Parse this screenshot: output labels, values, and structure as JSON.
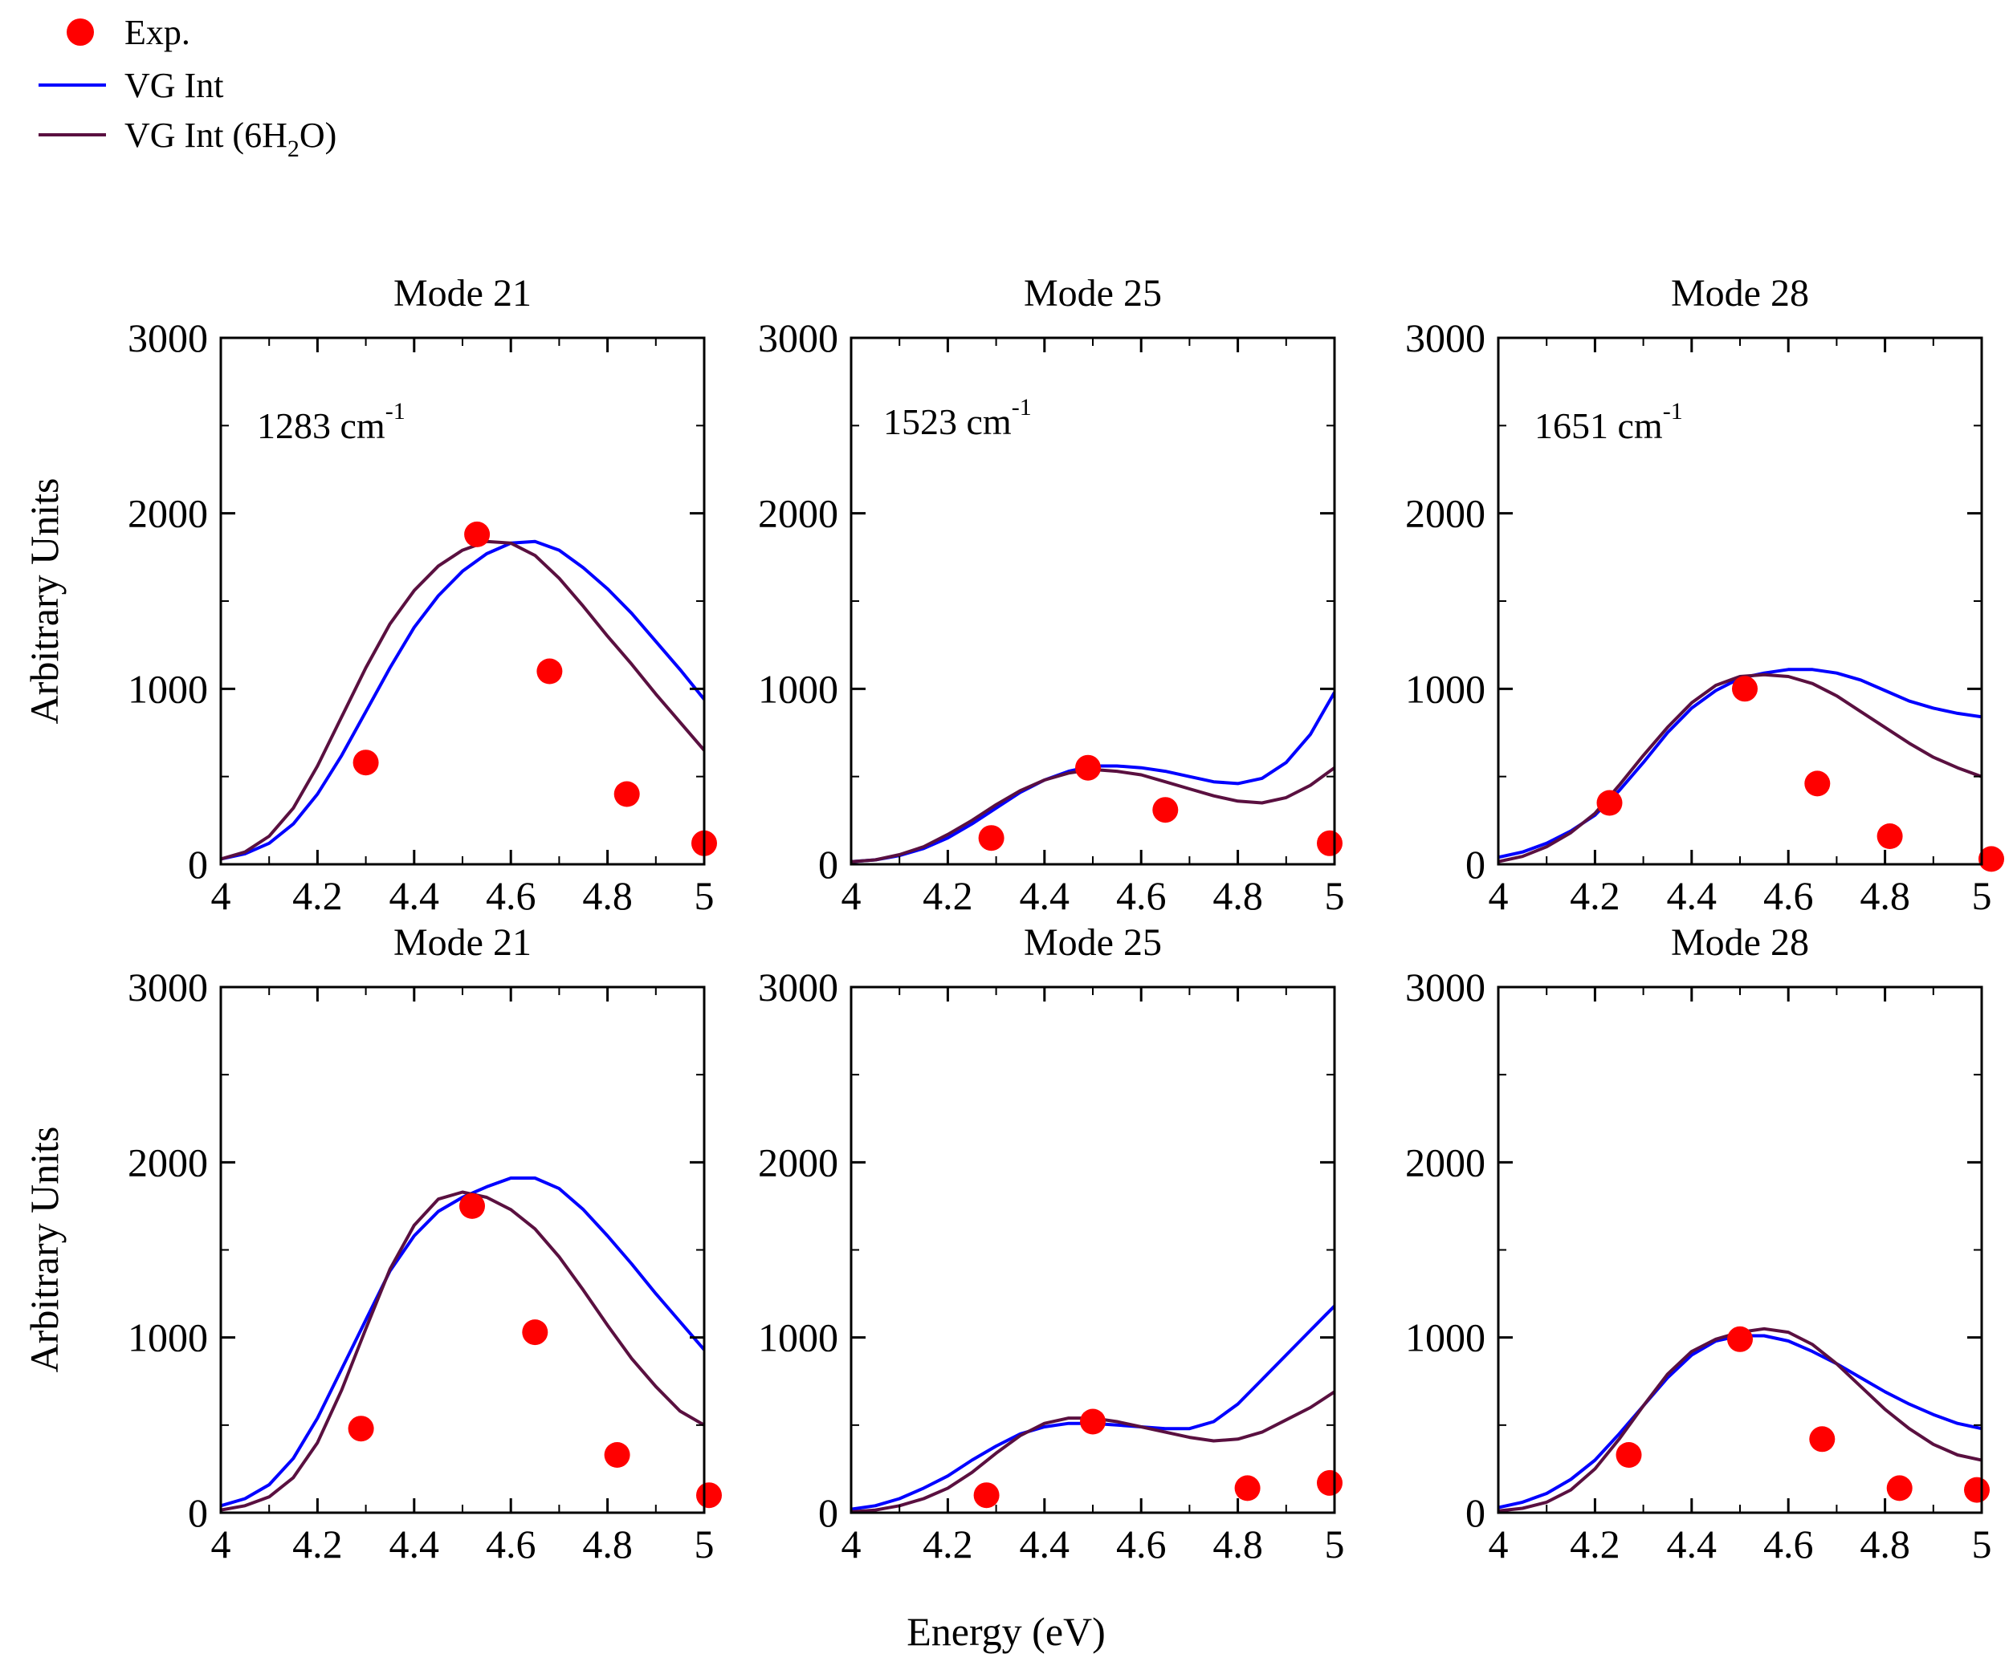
{
  "figure": {
    "xlabel": "Energy (eV)",
    "ylabel": "Arbitrary Units"
  },
  "legend": {
    "items": [
      {
        "label_parts": [
          "Exp."
        ],
        "marker": "circle",
        "color": "#ff0000"
      },
      {
        "label_parts": [
          "VG Int"
        ],
        "marker": "line",
        "color": "#0000ff"
      },
      {
        "label_parts": [
          "VG Int (6H",
          "2",
          "O)"
        ],
        "marker": "line",
        "color": "#5a1040"
      }
    ]
  },
  "colors": {
    "exp": "#ff0000",
    "vg_int": "#0000ff",
    "vg_int_6h2o": "#5a1040",
    "axes": "#000000"
  },
  "chart_data": [
    {
      "type": "line",
      "title": "Mode 21",
      "annotation": {
        "text": "1283 cm",
        "sup": "-1"
      },
      "xlim": [
        4,
        5
      ],
      "ylim": [
        0,
        3000
      ],
      "xticks": [
        4,
        4.2,
        4.4,
        4.6,
        4.8,
        5
      ],
      "xtick_labels": [
        "4",
        "4.2",
        "4.4",
        "4.6",
        "4.8",
        "5"
      ],
      "yticks": [
        0,
        1000,
        2000,
        3000
      ],
      "ytick_labels": [
        "0",
        "1000",
        "2000",
        "3000"
      ],
      "series": [
        {
          "name": "VG Int",
          "kind": "line",
          "color": "#0000ff",
          "x": [
            4.0,
            4.05,
            4.1,
            4.15,
            4.2,
            4.25,
            4.3,
            4.35,
            4.4,
            4.45,
            4.5,
            4.55,
            4.6,
            4.65,
            4.7,
            4.75,
            4.8,
            4.85,
            4.9,
            4.95,
            5.0
          ],
          "y": [
            30,
            60,
            120,
            230,
            400,
            620,
            870,
            1120,
            1350,
            1530,
            1670,
            1770,
            1830,
            1840,
            1790,
            1690,
            1570,
            1430,
            1270,
            1110,
            940
          ]
        },
        {
          "name": "VG Int (6H2O)",
          "kind": "line",
          "color": "#5a1040",
          "x": [
            4.0,
            4.05,
            4.1,
            4.15,
            4.2,
            4.25,
            4.3,
            4.35,
            4.4,
            4.45,
            4.5,
            4.55,
            4.6,
            4.65,
            4.7,
            4.75,
            4.8,
            4.85,
            4.9,
            4.95,
            5.0
          ],
          "y": [
            30,
            70,
            160,
            320,
            560,
            840,
            1120,
            1370,
            1560,
            1700,
            1790,
            1840,
            1830,
            1760,
            1630,
            1470,
            1300,
            1140,
            970,
            810,
            650
          ]
        },
        {
          "name": "Exp.",
          "kind": "scatter",
          "color": "#ff0000",
          "x": [
            4.3,
            4.53,
            4.68,
            4.84,
            5.0
          ],
          "y": [
            580,
            1880,
            1100,
            400,
            120
          ]
        }
      ]
    },
    {
      "type": "line",
      "title": "Mode 25",
      "annotation": {
        "text": "1523 cm",
        "sup": "-1"
      },
      "xlim": [
        4,
        5
      ],
      "ylim": [
        0,
        3000
      ],
      "xticks": [
        4,
        4.2,
        4.4,
        4.6,
        4.8,
        5
      ],
      "xtick_labels": [
        "4",
        "4.2",
        "4.4",
        "4.6",
        "4.8",
        "5"
      ],
      "yticks": [
        0,
        1000,
        2000,
        3000
      ],
      "ytick_labels": [
        "0",
        "1000",
        "2000",
        "3000"
      ],
      "series": [
        {
          "name": "VG Int",
          "kind": "line",
          "color": "#0000ff",
          "x": [
            4.0,
            4.05,
            4.1,
            4.15,
            4.2,
            4.25,
            4.3,
            4.35,
            4.4,
            4.45,
            4.5,
            4.55,
            4.6,
            4.65,
            4.7,
            4.75,
            4.8,
            4.85,
            4.9,
            4.95,
            5.0
          ],
          "y": [
            15,
            25,
            50,
            90,
            150,
            230,
            320,
            410,
            480,
            530,
            560,
            560,
            550,
            530,
            500,
            470,
            460,
            490,
            580,
            740,
            980
          ]
        },
        {
          "name": "VG Int (6H2O)",
          "kind": "line",
          "color": "#5a1040",
          "x": [
            4.0,
            4.05,
            4.1,
            4.15,
            4.2,
            4.25,
            4.3,
            4.35,
            4.4,
            4.45,
            4.5,
            4.55,
            4.6,
            4.65,
            4.7,
            4.75,
            4.8,
            4.85,
            4.9,
            4.95,
            5.0
          ],
          "y": [
            15,
            25,
            55,
            100,
            170,
            250,
            340,
            420,
            480,
            520,
            540,
            530,
            510,
            470,
            430,
            390,
            360,
            350,
            380,
            450,
            550
          ]
        },
        {
          "name": "Exp.",
          "kind": "scatter",
          "color": "#ff0000",
          "x": [
            4.29,
            4.49,
            4.65,
            4.99
          ],
          "y": [
            150,
            550,
            310,
            120
          ]
        }
      ]
    },
    {
      "type": "line",
      "title": "Mode 28",
      "annotation": {
        "text": "1651 cm",
        "sup": "-1"
      },
      "xlim": [
        4,
        5
      ],
      "ylim": [
        0,
        3000
      ],
      "xticks": [
        4,
        4.2,
        4.4,
        4.6,
        4.8,
        5
      ],
      "xtick_labels": [
        "4",
        "4.2",
        "4.4",
        "4.6",
        "4.8",
        "5"
      ],
      "yticks": [
        0,
        1000,
        2000,
        3000
      ],
      "ytick_labels": [
        "0",
        "1000",
        "2000",
        "3000"
      ],
      "series": [
        {
          "name": "VG Int",
          "kind": "line",
          "color": "#0000ff",
          "x": [
            4.0,
            4.05,
            4.1,
            4.15,
            4.2,
            4.25,
            4.3,
            4.35,
            4.4,
            4.45,
            4.5,
            4.55,
            4.6,
            4.65,
            4.7,
            4.75,
            4.8,
            4.85,
            4.9,
            4.95,
            5.0
          ],
          "y": [
            40,
            70,
            120,
            190,
            280,
            420,
            580,
            750,
            890,
            990,
            1060,
            1090,
            1110,
            1110,
            1090,
            1050,
            990,
            930,
            890,
            860,
            840
          ]
        },
        {
          "name": "VG Int (6H2O)",
          "kind": "line",
          "color": "#5a1040",
          "x": [
            4.0,
            4.05,
            4.1,
            4.15,
            4.2,
            4.25,
            4.3,
            4.35,
            4.4,
            4.45,
            4.5,
            4.55,
            4.6,
            4.65,
            4.7,
            4.75,
            4.8,
            4.85,
            4.9,
            4.95,
            5.0
          ],
          "y": [
            15,
            45,
            100,
            180,
            290,
            450,
            620,
            780,
            920,
            1020,
            1070,
            1080,
            1070,
            1030,
            960,
            870,
            780,
            690,
            610,
            550,
            500
          ]
        },
        {
          "name": "Exp.",
          "kind": "scatter",
          "color": "#ff0000",
          "x": [
            4.23,
            4.51,
            4.66,
            4.81,
            5.02
          ],
          "y": [
            350,
            1000,
            460,
            160,
            30
          ]
        }
      ]
    },
    {
      "type": "line",
      "title": "Mode 21",
      "xlim": [
        4,
        5
      ],
      "ylim": [
        0,
        3000
      ],
      "xticks": [
        4,
        4.2,
        4.4,
        4.6,
        4.8,
        5
      ],
      "xtick_labels": [
        "4",
        "4.2",
        "4.4",
        "4.6",
        "4.8",
        "5"
      ],
      "yticks": [
        0,
        1000,
        2000,
        3000
      ],
      "ytick_labels": [
        "0",
        "1000",
        "2000",
        "3000"
      ],
      "series": [
        {
          "name": "VG Int",
          "kind": "line",
          "color": "#0000ff",
          "x": [
            4.0,
            4.05,
            4.1,
            4.15,
            4.2,
            4.25,
            4.3,
            4.35,
            4.4,
            4.45,
            4.5,
            4.55,
            4.6,
            4.65,
            4.7,
            4.75,
            4.8,
            4.85,
            4.9,
            4.95,
            5.0
          ],
          "y": [
            40,
            80,
            160,
            310,
            540,
            820,
            1100,
            1380,
            1580,
            1720,
            1800,
            1860,
            1910,
            1910,
            1850,
            1730,
            1580,
            1420,
            1250,
            1090,
            930
          ]
        },
        {
          "name": "VG Int (6H2O)",
          "kind": "line",
          "color": "#5a1040",
          "x": [
            4.0,
            4.05,
            4.1,
            4.15,
            4.2,
            4.25,
            4.3,
            4.35,
            4.4,
            4.45,
            4.5,
            4.55,
            4.6,
            4.65,
            4.7,
            4.75,
            4.8,
            4.85,
            4.9,
            4.95,
            5.0
          ],
          "y": [
            15,
            40,
            90,
            200,
            400,
            700,
            1050,
            1390,
            1640,
            1790,
            1830,
            1800,
            1730,
            1620,
            1460,
            1270,
            1070,
            880,
            720,
            580,
            500
          ]
        },
        {
          "name": "Exp.",
          "kind": "scatter",
          "color": "#ff0000",
          "x": [
            4.29,
            4.52,
            4.65,
            4.82,
            5.01
          ],
          "y": [
            480,
            1750,
            1030,
            330,
            100
          ]
        }
      ]
    },
    {
      "type": "line",
      "title": "Mode 25",
      "xlim": [
        4,
        5
      ],
      "ylim": [
        0,
        3000
      ],
      "xticks": [
        4,
        4.2,
        4.4,
        4.6,
        4.8,
        5
      ],
      "xtick_labels": [
        "4",
        "4.2",
        "4.4",
        "4.6",
        "4.8",
        "5"
      ],
      "yticks": [
        0,
        1000,
        2000,
        3000
      ],
      "ytick_labels": [
        "0",
        "1000",
        "2000",
        "3000"
      ],
      "series": [
        {
          "name": "VG Int",
          "kind": "line",
          "color": "#0000ff",
          "x": [
            4.0,
            4.05,
            4.1,
            4.15,
            4.2,
            4.25,
            4.3,
            4.35,
            4.4,
            4.45,
            4.5,
            4.55,
            4.6,
            4.65,
            4.7,
            4.75,
            4.8,
            4.85,
            4.9,
            4.95,
            5.0
          ],
          "y": [
            20,
            40,
            80,
            140,
            210,
            300,
            380,
            450,
            490,
            510,
            510,
            500,
            490,
            480,
            480,
            520,
            620,
            760,
            900,
            1040,
            1180
          ]
        },
        {
          "name": "VG Int (6H2O)",
          "kind": "line",
          "color": "#5a1040",
          "x": [
            4.0,
            4.05,
            4.1,
            4.15,
            4.2,
            4.25,
            4.3,
            4.35,
            4.4,
            4.45,
            4.5,
            4.55,
            4.6,
            4.65,
            4.7,
            4.75,
            4.8,
            4.85,
            4.9,
            4.95,
            5.0
          ],
          "y": [
            5,
            15,
            40,
            80,
            140,
            230,
            340,
            440,
            510,
            540,
            540,
            520,
            490,
            460,
            430,
            410,
            420,
            460,
            530,
            600,
            690
          ]
        },
        {
          "name": "Exp.",
          "kind": "scatter",
          "color": "#ff0000",
          "x": [
            4.28,
            4.5,
            4.82,
            4.99
          ],
          "y": [
            100,
            520,
            140,
            170
          ]
        }
      ]
    },
    {
      "type": "line",
      "title": "Mode 28",
      "xlim": [
        4,
        5
      ],
      "ylim": [
        0,
        3000
      ],
      "xticks": [
        4,
        4.2,
        4.4,
        4.6,
        4.8,
        5
      ],
      "xtick_labels": [
        "4",
        "4.2",
        "4.4",
        "4.6",
        "4.8",
        "5"
      ],
      "yticks": [
        0,
        1000,
        2000,
        3000
      ],
      "ytick_labels": [
        "0",
        "1000",
        "2000",
        "3000"
      ],
      "series": [
        {
          "name": "VG Int",
          "kind": "line",
          "color": "#0000ff",
          "x": [
            4.0,
            4.05,
            4.1,
            4.15,
            4.2,
            4.25,
            4.3,
            4.35,
            4.4,
            4.45,
            4.5,
            4.55,
            4.6,
            4.65,
            4.7,
            4.75,
            4.8,
            4.85,
            4.9,
            4.95,
            5.0
          ],
          "y": [
            30,
            60,
            110,
            190,
            300,
            450,
            610,
            770,
            900,
            980,
            1010,
            1010,
            980,
            920,
            850,
            770,
            690,
            620,
            560,
            510,
            480
          ]
        },
        {
          "name": "VG Int (6H2O)",
          "kind": "line",
          "color": "#5a1040",
          "x": [
            4.0,
            4.05,
            4.1,
            4.15,
            4.2,
            4.25,
            4.3,
            4.35,
            4.4,
            4.45,
            4.5,
            4.55,
            4.6,
            4.65,
            4.7,
            4.75,
            4.8,
            4.85,
            4.9,
            4.95,
            5.0
          ],
          "y": [
            10,
            25,
            60,
            130,
            250,
            420,
            610,
            790,
            920,
            990,
            1030,
            1050,
            1030,
            960,
            850,
            720,
            590,
            480,
            390,
            330,
            300
          ]
        },
        {
          "name": "Exp.",
          "kind": "scatter",
          "color": "#ff0000",
          "x": [
            4.27,
            4.5,
            4.67,
            4.83,
            4.99
          ],
          "y": [
            330,
            990,
            420,
            140,
            130
          ]
        }
      ]
    }
  ]
}
